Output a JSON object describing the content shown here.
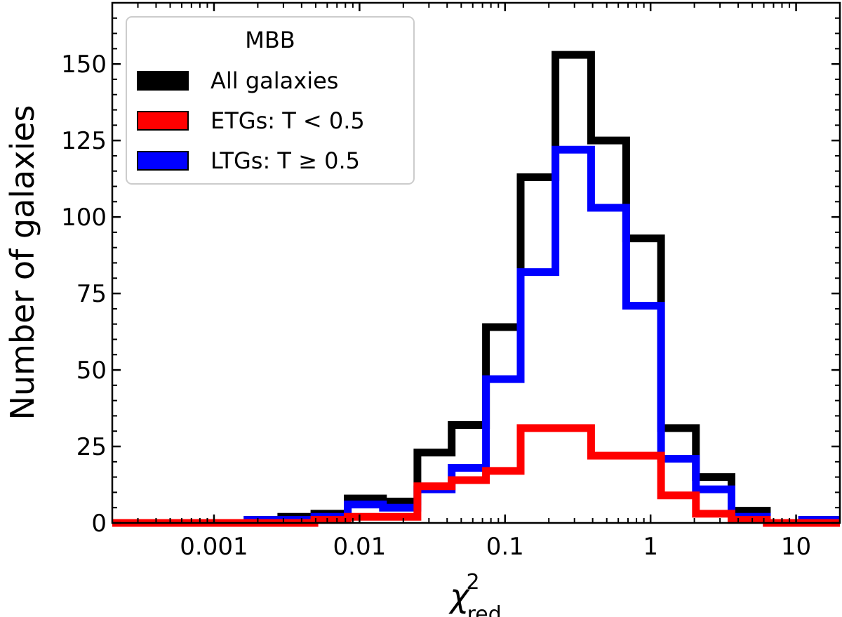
{
  "chart_data": {
    "type": "histogram",
    "xscale": "log",
    "xlim": [
      0.0002,
      20
    ],
    "ylim": [
      0,
      170
    ],
    "xlabel": "χ",
    "xlabel_sup": "2",
    "xlabel_sub": "red",
    "ylabel": "Number of galaxies",
    "xticks": [
      {
        "value": 0.001,
        "label": "0.001"
      },
      {
        "value": 0.01,
        "label": "0.01"
      },
      {
        "value": 0.1,
        "label": "0.1"
      },
      {
        "value": 1,
        "label": "1"
      },
      {
        "value": 10,
        "label": "10"
      }
    ],
    "yticks": [
      {
        "value": 0,
        "label": "0"
      },
      {
        "value": 25,
        "label": "25"
      },
      {
        "value": 50,
        "label": "50"
      },
      {
        "value": 75,
        "label": "75"
      },
      {
        "value": 100,
        "label": "100"
      },
      {
        "value": 125,
        "label": "125"
      },
      {
        "value": 150,
        "label": "150"
      }
    ],
    "bin_edges": [
      0.0002,
      0.00035,
      0.0006,
      0.001,
      0.0017,
      0.0029,
      0.0049,
      0.0083,
      0.0145,
      0.025,
      0.043,
      0.074,
      0.128,
      0.222,
      0.39,
      0.68,
      1.18,
      2.05,
      3.6,
      6.3,
      11,
      20
    ],
    "series": [
      {
        "name": "All galaxies",
        "color": "#000000",
        "values": [
          0,
          0,
          0,
          0,
          1,
          2,
          3,
          8,
          7,
          23,
          32,
          64,
          113,
          153,
          125,
          93,
          31,
          15,
          4,
          0,
          1
        ]
      },
      {
        "name": "LTGs: T ≥ 0.5",
        "color": "#0000ff",
        "values": [
          0,
          0,
          0,
          0,
          1,
          1,
          2,
          6,
          5,
          11,
          18,
          47,
          82,
          122,
          103,
          71,
          21,
          11,
          2,
          0,
          1
        ]
      },
      {
        "name": "ETGs: T < 0.5",
        "color": "#ff0000",
        "values": [
          0,
          0,
          0,
          0,
          0,
          0,
          1,
          2,
          2,
          12,
          14,
          17,
          31,
          31,
          22,
          22,
          9,
          3,
          1,
          0,
          0
        ]
      }
    ],
    "legend": {
      "title": "MBB",
      "position": "top-left",
      "entries": [
        {
          "label": "All galaxies",
          "color": "#000000"
        },
        {
          "label": "ETGs: T < 0.5",
          "color": "#ff0000"
        },
        {
          "label": "LTGs: T ≥ 0.5",
          "color": "#0000ff"
        }
      ]
    }
  }
}
